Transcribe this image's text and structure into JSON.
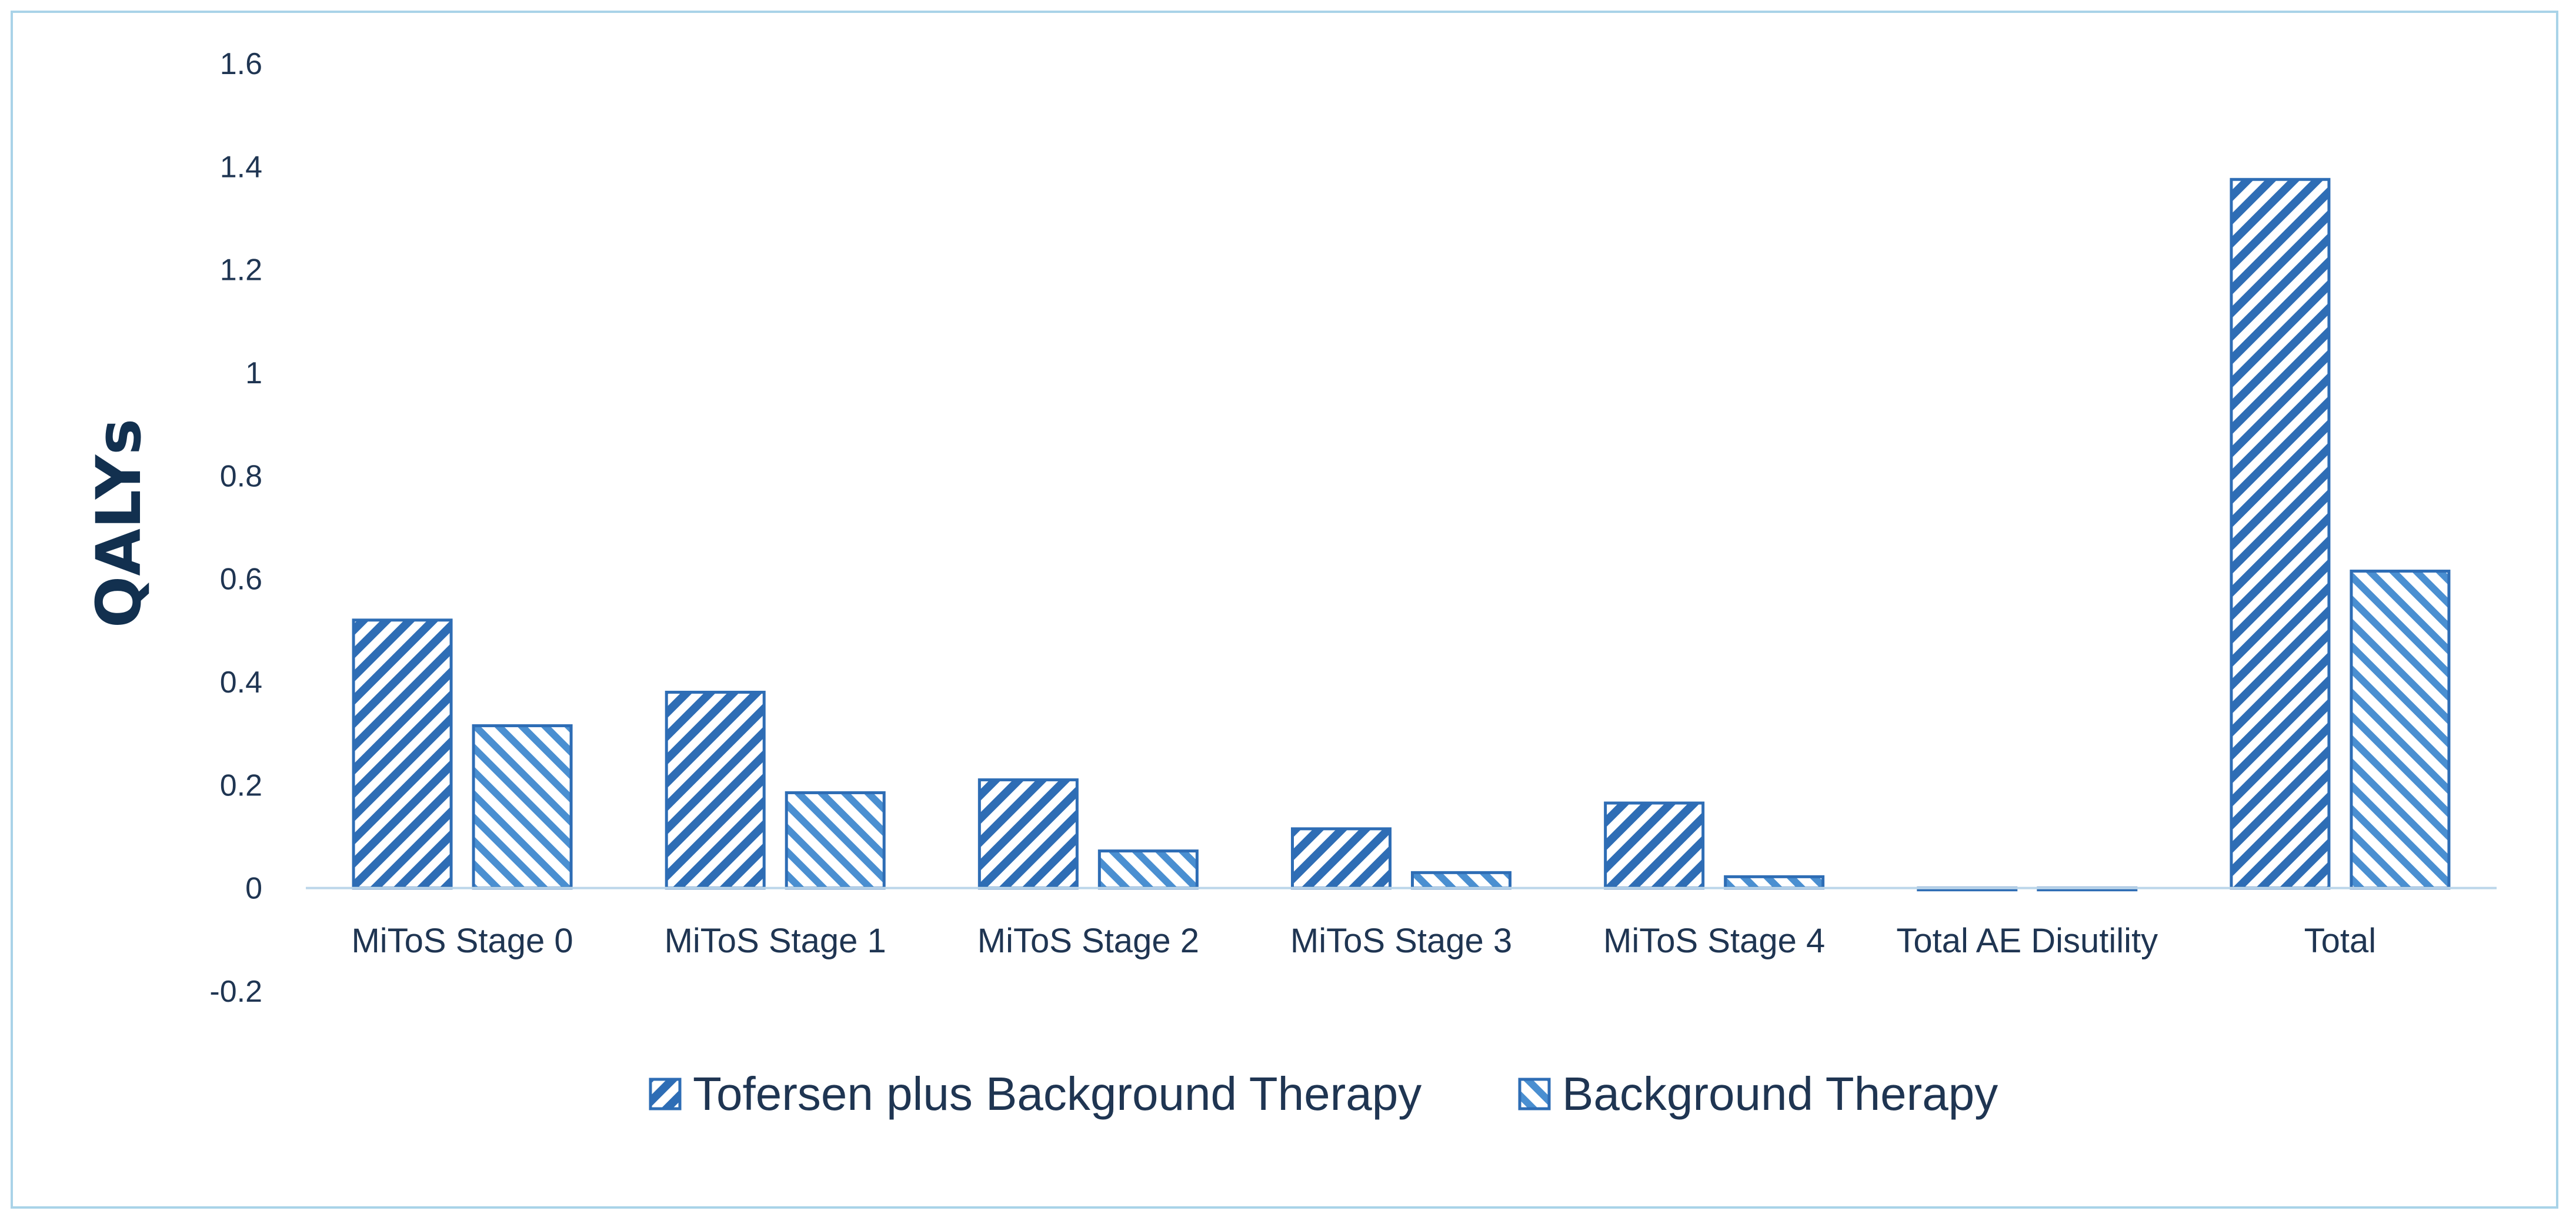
{
  "chart_data": {
    "type": "bar",
    "ylabel": "QALYs",
    "xlabel": "",
    "ylim": [
      -0.2,
      1.6
    ],
    "yticks": [
      -0.2,
      0,
      0.2,
      0.4,
      0.6,
      0.8,
      1,
      1.2,
      1.4,
      1.6
    ],
    "ytick_labels": [
      "-0.2",
      "0",
      "0.2",
      "0.4",
      "0.6",
      "0.8",
      "1",
      "1.2",
      "1.4",
      "1.6"
    ],
    "grid": false,
    "legend_position": "bottom",
    "categories": [
      "MiToS Stage 0",
      "MiToS Stage 1",
      "MiToS Stage 2",
      "MiToS Stage 3",
      "MiToS Stage 4",
      "Total AE Disutility",
      "Total"
    ],
    "series": [
      {
        "name": "Tofersen plus Background Therapy",
        "pattern": "diagonal-forward",
        "color": "#2e6db5",
        "values": [
          0.52,
          0.38,
          0.21,
          0.115,
          0.165,
          -0.003,
          1.375
        ]
      },
      {
        "name": "Background Therapy",
        "pattern": "diagonal-backward",
        "color": "#4a8fd1",
        "values": [
          0.315,
          0.185,
          0.072,
          0.03,
          0.022,
          -0.003,
          0.615
        ]
      }
    ]
  }
}
